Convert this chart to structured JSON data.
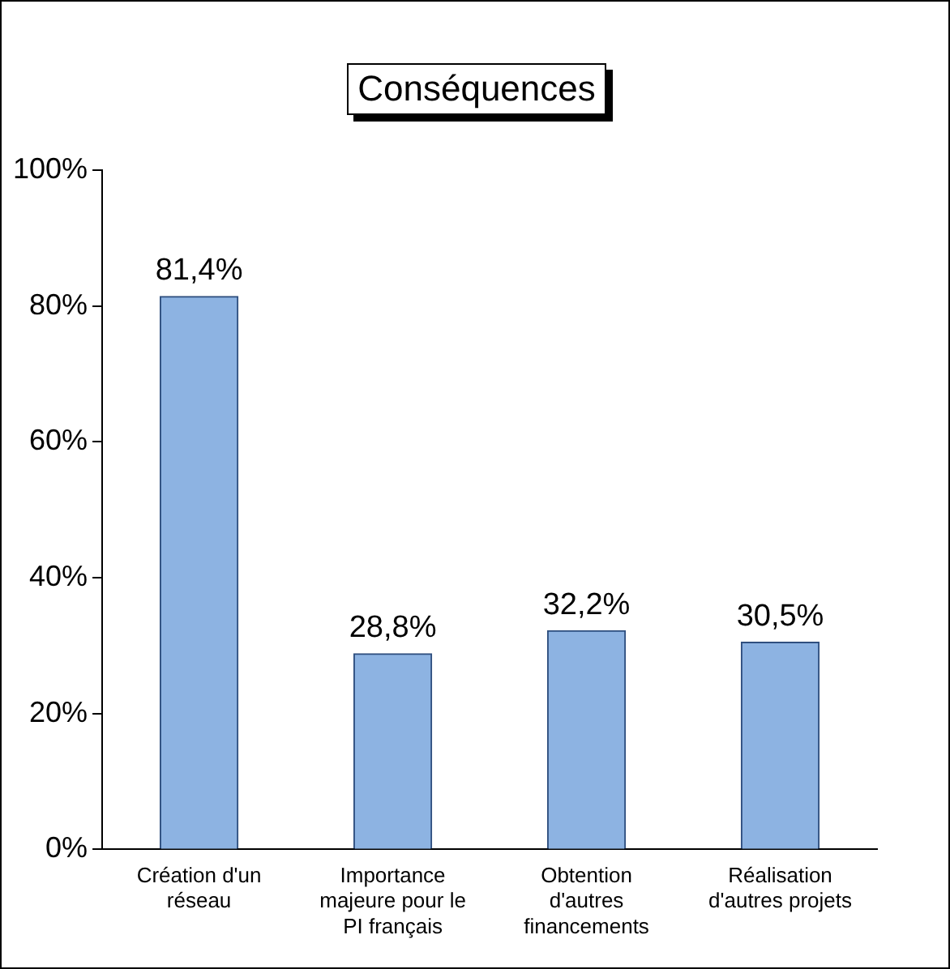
{
  "chart_data": {
    "type": "bar",
    "title": "Conséquences",
    "categories": [
      "Création d'un réseau",
      "Importance majeure pour le PI français",
      "Obtention d'autres financements",
      "Réalisation d'autres projets"
    ],
    "values": [
      81.4,
      28.8,
      32.2,
      30.5
    ],
    "value_labels": [
      "81,4%",
      "28,8%",
      "32,2%",
      "30,5%"
    ],
    "color": "#8db3e2",
    "ylim": [
      0,
      100
    ],
    "yticks": [
      {
        "value": 0,
        "label": "0%"
      },
      {
        "value": 20,
        "label": "20%"
      },
      {
        "value": 40,
        "label": "40%"
      },
      {
        "value": 60,
        "label": "60%"
      },
      {
        "value": 80,
        "label": "80%"
      },
      {
        "value": 100,
        "label": "100%"
      }
    ],
    "grid": false,
    "legend": false
  }
}
